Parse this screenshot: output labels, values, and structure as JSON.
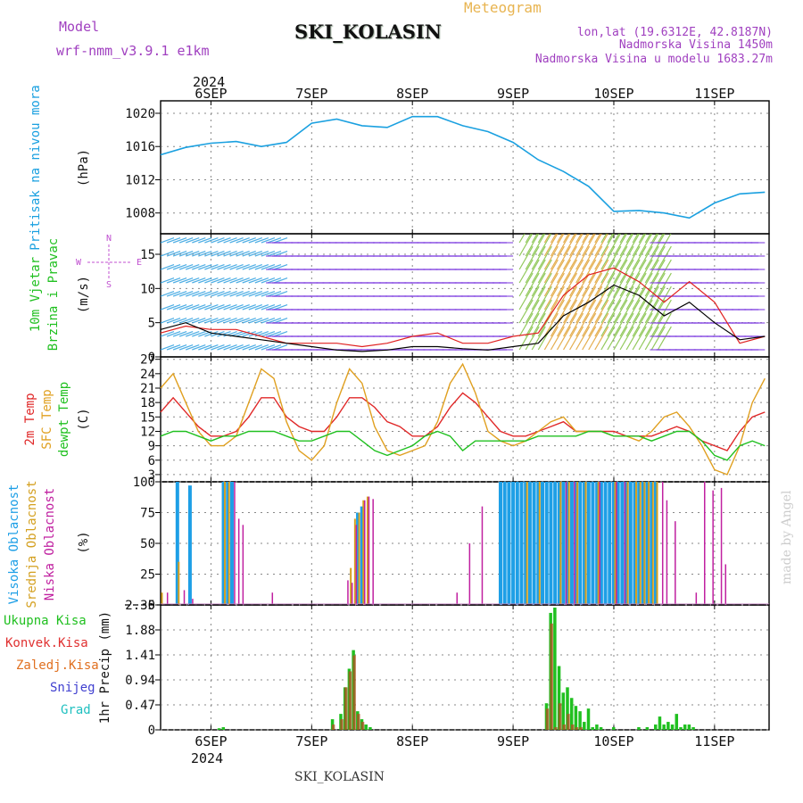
{
  "header": {
    "model_label": "Model",
    "model_name": "wrf-nmm_v3.9.1 e1km",
    "station": "SKI_KOLASIN",
    "meteogram_label": "Meteogram",
    "lonlat": "lon,lat (19.6312E, 42.8187N)",
    "elevation": "Nadmorska Visina 1450m",
    "model_elevation": "Nadmorska Visina u modelu 1683.27m",
    "footer_station": "SKI_KOLASIN",
    "watermark": "made by Angel"
  },
  "colors": {
    "pressure": "#1aa0e0",
    "wind_speed": "#000000",
    "wind_gust": "#e02020",
    "temp2m": "#e02828",
    "sfc_temp": "#e0a020",
    "dewpt": "#20c020",
    "cloud_high": "#1e9fe6",
    "cloud_mid": "#d4a020",
    "cloud_low": "#c020a0",
    "precip_total": "#20c020",
    "precip_conv": "#e03030",
    "precip_frozen": "#e07020",
    "snow": "#4040d0",
    "graupel": "#20c0c0",
    "wind_label_total": "#20c020",
    "wind_dir_label": "#c050d0",
    "purple_text": "#a040c0",
    "orange_text": "#e0a030"
  },
  "chart_data": [
    {
      "type": "line",
      "panel": "pressure",
      "ylabel_left": "Pritisak na nivou mora",
      "ylabel_unit": "(hPa)",
      "ylim": [
        1005.5,
        1021.5
      ],
      "yticks": [
        1008,
        1012,
        1016,
        1020
      ],
      "x": [
        0,
        6,
        12,
        18,
        24,
        30,
        36,
        42,
        48,
        54,
        60,
        66,
        72,
        78,
        84,
        90,
        96,
        102,
        108,
        114,
        120,
        126,
        132,
        138,
        144
      ],
      "values": [
        1015,
        1015.9,
        1016.4,
        1016.6,
        1016,
        1016.5,
        1018.8,
        1019.3,
        1018.5,
        1018.3,
        1019.6,
        1019.6,
        1018.5,
        1017.8,
        1016.5,
        1014.4,
        1013,
        1011.2,
        1008.2,
        1008.3,
        1008,
        1007.4,
        1009.2,
        1010.3,
        1010.5
      ],
      "grid": true
    },
    {
      "type": "line",
      "panel": "wind",
      "ylabel_left": [
        "10m Vjetar",
        "Brzina i Pravac"
      ],
      "ylabel_unit": "(m/s)",
      "ylim": [
        0,
        18
      ],
      "yticks": [
        0,
        5,
        10,
        15
      ],
      "direction_key": {
        "n": "N",
        "s": "S",
        "e": "E",
        "w": "W"
      },
      "series": [
        {
          "name": "speed",
          "x": [
            0,
            6,
            12,
            18,
            24,
            30,
            36,
            42,
            48,
            54,
            60,
            66,
            72,
            78,
            84,
            90,
            96,
            102,
            108,
            114,
            120,
            126,
            132,
            138,
            144
          ],
          "values": [
            4,
            5,
            3.5,
            3,
            2.5,
            2,
            1.5,
            1,
            0.8,
            1,
            1.5,
            1.5,
            1.2,
            1,
            1.5,
            2,
            6,
            8,
            10.5,
            9,
            6,
            8,
            5,
            2.5,
            3
          ]
        },
        {
          "name": "gust",
          "x": [
            0,
            6,
            12,
            18,
            24,
            30,
            36,
            42,
            48,
            54,
            60,
            66,
            72,
            78,
            84,
            90,
            96,
            102,
            108,
            114,
            120,
            126,
            132,
            138,
            144
          ],
          "values": [
            3.5,
            4.5,
            4,
            4,
            3,
            2,
            2,
            2,
            1.5,
            2,
            3,
            3.5,
            2,
            2,
            3,
            3.5,
            9,
            12,
            13,
            11,
            8,
            11,
            8,
            2,
            3
          ]
        }
      ],
      "grid": true
    },
    {
      "type": "line",
      "panel": "temperature",
      "ylabel_left": [
        "2m Temp",
        "SFC Temp",
        "dewpt Temp"
      ],
      "ylabel_unit": "(C)",
      "ylim": [
        1.5,
        27.5
      ],
      "yticks": [
        3,
        6,
        9,
        12,
        15,
        18,
        21,
        24,
        27
      ],
      "series": [
        {
          "name": "2m Temp",
          "x": [
            0,
            3,
            6,
            9,
            12,
            15,
            18,
            21,
            24,
            27,
            30,
            33,
            36,
            39,
            42,
            45,
            48,
            51,
            54,
            57,
            60,
            63,
            66,
            69,
            72,
            75,
            78,
            81,
            84,
            87,
            90,
            93,
            96,
            99,
            102,
            105,
            108,
            111,
            114,
            117,
            120,
            123,
            126,
            129,
            132,
            135,
            138,
            141,
            144
          ],
          "values": [
            16,
            19,
            16,
            13,
            11,
            11,
            12,
            15,
            19,
            19,
            15,
            13,
            12,
            12,
            15,
            19,
            19,
            17,
            14,
            13,
            11,
            11,
            13,
            17,
            20,
            18,
            15,
            12,
            11,
            11,
            12,
            13,
            14,
            12,
            12,
            12,
            12,
            11,
            11,
            11,
            12,
            13,
            12,
            10,
            9,
            8,
            12,
            15,
            16
          ]
        },
        {
          "name": "SFC Temp",
          "x": [
            0,
            3,
            6,
            9,
            12,
            15,
            18,
            21,
            24,
            27,
            30,
            33,
            36,
            39,
            42,
            45,
            48,
            51,
            54,
            57,
            60,
            63,
            66,
            69,
            72,
            75,
            78,
            81,
            84,
            87,
            90,
            93,
            96,
            99,
            102,
            105,
            108,
            111,
            114,
            117,
            120,
            123,
            126,
            129,
            132,
            135,
            138,
            141,
            144
          ],
          "values": [
            21,
            24,
            18,
            12,
            9,
            9,
            11,
            18,
            25,
            23,
            14,
            8,
            6,
            9,
            18,
            25,
            22,
            13,
            8,
            7,
            8,
            9,
            14,
            22,
            26,
            20,
            12,
            10,
            9,
            10,
            12,
            14,
            15,
            12,
            12,
            12,
            11,
            11,
            10,
            12,
            15,
            16,
            13,
            9,
            4,
            3,
            9,
            18,
            23
          ]
        },
        {
          "name": "dewpt Temp",
          "x": [
            0,
            3,
            6,
            9,
            12,
            15,
            18,
            21,
            24,
            27,
            30,
            33,
            36,
            39,
            42,
            45,
            48,
            51,
            54,
            57,
            60,
            63,
            66,
            69,
            72,
            75,
            78,
            81,
            84,
            87,
            90,
            93,
            96,
            99,
            102,
            105,
            108,
            111,
            114,
            117,
            120,
            123,
            126,
            129,
            132,
            135,
            138,
            141,
            144
          ],
          "values": [
            11,
            12,
            12,
            11,
            10,
            11,
            11,
            12,
            12,
            12,
            11,
            10,
            10,
            11,
            12,
            12,
            10,
            8,
            7,
            8,
            9,
            11,
            12,
            11,
            8,
            10,
            10,
            10,
            10,
            10,
            11,
            11,
            11,
            11,
            12,
            12,
            11,
            11,
            11,
            10,
            11,
            12,
            12,
            10,
            7,
            6,
            9,
            10,
            9
          ]
        }
      ],
      "grid": true
    },
    {
      "type": "bar",
      "panel": "clouds",
      "ylabel_left": [
        "Visoka Oblacnost",
        "Srednja Oblacnost",
        "Niska Oblacnost"
      ],
      "ylabel_unit": "(%)",
      "ylim": [
        0,
        100
      ],
      "yticks": [
        0,
        25,
        50,
        75,
        100
      ],
      "series": [
        {
          "name": "Visoka Oblacnost",
          "x": [
            4,
            7,
            15,
            16,
            17,
            47,
            48,
            81,
            82,
            83,
            84,
            85,
            86,
            87,
            88,
            89,
            90,
            91,
            92,
            93,
            94,
            95,
            96,
            97,
            98,
            99,
            100,
            101,
            102,
            103,
            104,
            105,
            106,
            107,
            108,
            109,
            110,
            111,
            112,
            113,
            114,
            115,
            116,
            117,
            118
          ],
          "values": [
            100,
            97,
            100,
            100,
            100,
            75,
            80,
            100,
            100,
            100,
            100,
            100,
            100,
            100,
            100,
            100,
            100,
            100,
            100,
            100,
            100,
            100,
            100,
            100,
            100,
            100,
            100,
            100,
            100,
            100,
            100,
            100,
            100,
            100,
            100,
            100,
            100,
            100,
            100,
            100,
            100,
            100,
            100,
            100,
            100
          ]
        },
        {
          "name": "Srednja Oblacnost",
          "x": [
            0,
            4,
            15,
            16,
            45,
            46,
            47,
            48,
            49,
            87,
            90,
            95,
            97,
            99,
            101,
            104,
            108,
            111,
            113,
            114,
            115,
            116,
            117,
            118
          ],
          "values": [
            10,
            35,
            100,
            100,
            30,
            70,
            75,
            85,
            88,
            100,
            100,
            100,
            100,
            100,
            100,
            100,
            100,
            100,
            100,
            100,
            100,
            100,
            100,
            100
          ]
        },
        {
          "name": "Niska Oblacnost",
          "x": [
            1,
            5,
            7,
            17,
            18,
            19,
            26,
            44,
            45,
            46,
            48,
            49,
            50,
            70,
            73,
            76,
            96,
            98,
            104,
            108,
            110,
            119,
            120,
            122,
            127,
            129,
            131,
            133,
            134
          ],
          "values": [
            10,
            12,
            5,
            100,
            70,
            65,
            10,
            20,
            18,
            65,
            85,
            88,
            86,
            10,
            50,
            80,
            100,
            100,
            100,
            100,
            100,
            100,
            85,
            68,
            10,
            100,
            93,
            95,
            33
          ]
        }
      ],
      "grid": true
    },
    {
      "type": "bar",
      "panel": "precipitation",
      "ylabel_left": [
        "Ukupna Kisa",
        "Konvek.Kisa",
        "Zaledj.Kisa",
        "Snijeg",
        "Grad"
      ],
      "ylabel_unit": "1hr Precip (mm)",
      "ylim": [
        0,
        2.35
      ],
      "yticks": [
        0,
        0.47,
        0.94,
        1.41,
        1.88,
        2.35
      ],
      "series": [
        {
          "name": "Ukupna Kisa",
          "x": [
            14,
            15,
            41,
            43,
            44,
            45,
            46,
            47,
            48,
            49,
            50,
            92,
            93,
            94,
            95,
            96,
            97,
            98,
            99,
            100,
            101,
            102,
            103,
            104,
            105,
            108,
            114,
            116,
            118,
            119,
            120,
            121,
            122,
            123,
            124,
            125,
            126,
            127
          ],
          "values": [
            0.03,
            0.05,
            0.2,
            0.3,
            0.8,
            1.15,
            1.5,
            0.35,
            0.2,
            0.1,
            0.05,
            0.5,
            2.2,
            2.3,
            1.2,
            0.7,
            0.8,
            0.6,
            0.45,
            0.35,
            0.15,
            0.4,
            0.05,
            0.1,
            0.05,
            0.05,
            0.05,
            0.05,
            0.1,
            0.25,
            0.1,
            0.15,
            0.1,
            0.3,
            0.05,
            0.1,
            0.1,
            0.05
          ]
        },
        {
          "name": "Konvek.Kisa",
          "x": [
            41,
            43,
            44,
            45,
            46,
            47,
            48,
            92,
            93,
            94,
            95,
            96,
            97,
            98,
            99,
            100
          ],
          "values": [
            0.1,
            0.2,
            0.8,
            1.1,
            1.4,
            0.3,
            0.15,
            0.4,
            2.0,
            0.05,
            0.5,
            0.1,
            0.3,
            0.1,
            0.05,
            0.05
          ]
        }
      ],
      "grid": true
    }
  ],
  "axes": {
    "year": "2024",
    "day_labels": [
      "6SEP",
      "7SEP",
      "8SEP",
      "9SEP",
      "10SEP",
      "11SEP"
    ],
    "day_positions_h": [
      12,
      36,
      60,
      84,
      108,
      132
    ],
    "x_range_h": [
      0,
      145
    ]
  }
}
